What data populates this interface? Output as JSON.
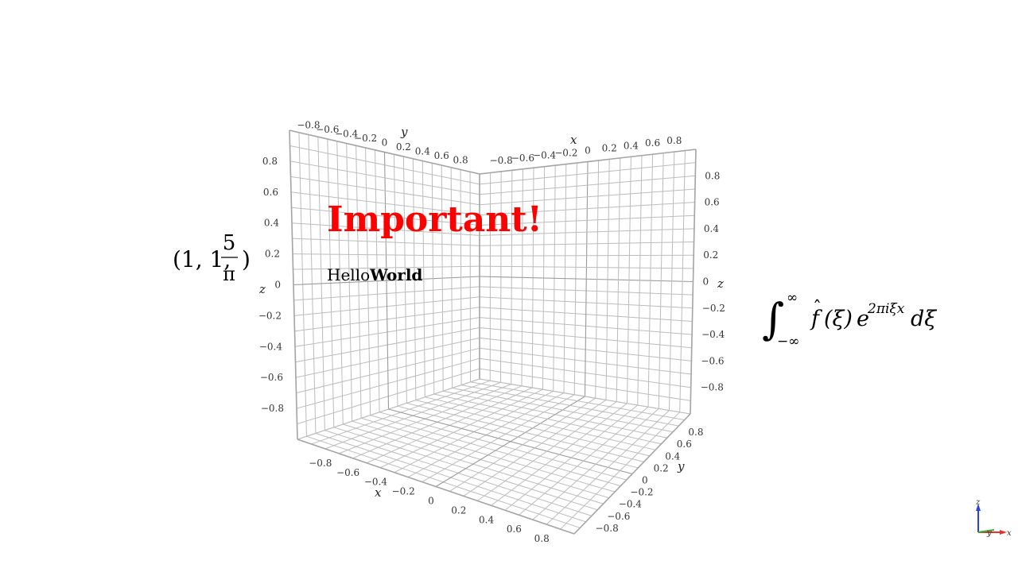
{
  "chart_data": {
    "type": "3d-axes",
    "title": "",
    "axes": {
      "x": {
        "label": "x",
        "range": [
          -1,
          1
        ],
        "ticks": [
          -0.8,
          -0.6,
          -0.4,
          -0.2,
          0,
          0.2,
          0.4,
          0.6,
          0.8
        ]
      },
      "y": {
        "label": "y",
        "range": [
          -1,
          1
        ],
        "ticks": [
          -0.8,
          -0.6,
          -0.4,
          -0.2,
          0,
          0.2,
          0.4,
          0.6,
          0.8
        ]
      },
      "z": {
        "label": "z",
        "range": [
          -1,
          1
        ],
        "ticks": [
          -0.8,
          -0.6,
          -0.4,
          -0.2,
          0,
          0.2,
          0.4,
          0.6,
          0.8
        ]
      }
    },
    "grid": true,
    "annotations": [
      {
        "id": "important",
        "text": "Important!",
        "color": "#ff0000",
        "weight": "bold"
      },
      {
        "id": "hello",
        "text_regular": "Hello",
        "text_bold": "World",
        "color": "#000000"
      },
      {
        "id": "point",
        "text": "(1, 1, 5/π)",
        "numerator": "5",
        "denominator": "π",
        "prefix": "(1, 1, ",
        "suffix": ")"
      },
      {
        "id": "integral",
        "text": "∫_{-∞}^{∞} f̂(ξ) e^{2πiξx} dξ"
      }
    ],
    "orientation_widget": {
      "x": "x",
      "y": "y",
      "z": "z",
      "colors": {
        "x": "#e8332a",
        "y": "#3fa535",
        "z": "#2a3fe8"
      }
    }
  },
  "ticks_labels": [
    "−0.8",
    "−0.6",
    "−0.4",
    "−0.2",
    "0",
    "0.2",
    "0.4",
    "0.6",
    "0.8"
  ],
  "math": {
    "point_prefix": "(1, 1, ",
    "point_num": "5",
    "point_den": "π",
    "point_suffix": ")",
    "integral_sign": "∫",
    "int_upper": "∞",
    "int_lower": "−∞",
    "int_f": "f",
    "int_hat": "ˆ",
    "int_arg": "(ξ)",
    "int_e": "e",
    "int_exp": "2πiξx",
    "int_d": "dξ"
  }
}
